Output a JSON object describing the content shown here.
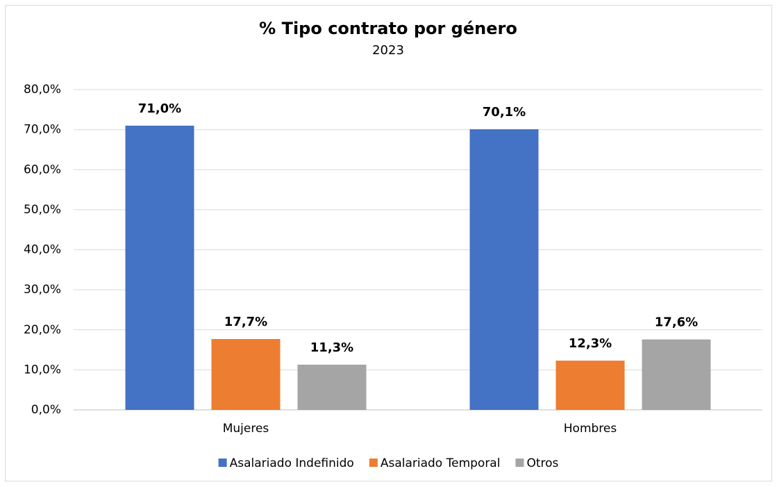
{
  "chart_data": {
    "type": "bar",
    "title": "% Tipo contrato por género",
    "subtitle": "2023",
    "categories": [
      "Mujeres",
      "Hombres"
    ],
    "series": [
      {
        "name": "Asalariado Indefinido",
        "color": "#4472c4",
        "values": [
          71.0,
          70.1
        ],
        "value_labels": [
          "71,0%",
          "70,1%"
        ]
      },
      {
        "name": "Asalariado Temporal",
        "color": "#ed7d31",
        "values": [
          17.7,
          12.3
        ],
        "value_labels": [
          "17,7%",
          "12,3%"
        ]
      },
      {
        "name": "Otros",
        "color": "#a5a5a5",
        "values": [
          11.3,
          17.6
        ],
        "value_labels": [
          "11,3%",
          "17,6%"
        ]
      }
    ],
    "ylim": [
      0,
      80
    ],
    "yticks": [
      {
        "value": 0,
        "label": "0,0%"
      },
      {
        "value": 10,
        "label": "10,0%"
      },
      {
        "value": 20,
        "label": "20,0%"
      },
      {
        "value": 30,
        "label": "30,0%"
      },
      {
        "value": 40,
        "label": "40,0%"
      },
      {
        "value": 50,
        "label": "50,0%"
      },
      {
        "value": 60,
        "label": "60,0%"
      },
      {
        "value": 70,
        "label": "70,0%"
      },
      {
        "value": 80,
        "label": "80,0%"
      }
    ],
    "grid": true,
    "legend": "bottom"
  }
}
